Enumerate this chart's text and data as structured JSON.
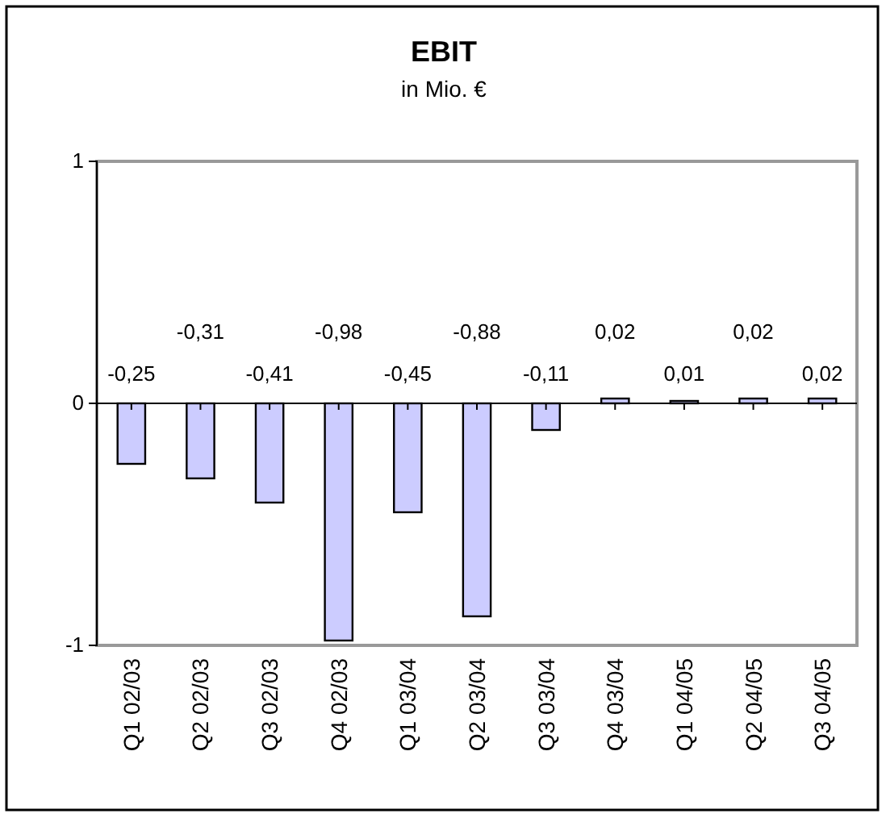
{
  "chart_data": {
    "type": "bar",
    "title": "EBIT",
    "subtitle": "in Mio. €",
    "categories": [
      "Q1 02/03",
      "Q2 02/03",
      "Q3 02/03",
      "Q4 02/03",
      "Q1 03/04",
      "Q2 03/04",
      "Q3 03/04",
      "Q4 03/04",
      "Q1 04/05",
      "Q2 04/05",
      "Q3 04/05"
    ],
    "values": [
      -0.25,
      -0.31,
      -0.41,
      -0.98,
      -0.45,
      -0.88,
      -0.11,
      0.02,
      0.01,
      0.02,
      0.02
    ],
    "value_labels": [
      "-0,25",
      "-0,31",
      "-0,41",
      "-0,98",
      "-0,45",
      "-0,88",
      "-0,11",
      "0,02",
      "0,01",
      "0,02",
      "0,02"
    ],
    "color": "#ccccff",
    "ylim": [
      -1,
      1
    ],
    "yticks": [
      -1,
      0,
      1
    ]
  }
}
